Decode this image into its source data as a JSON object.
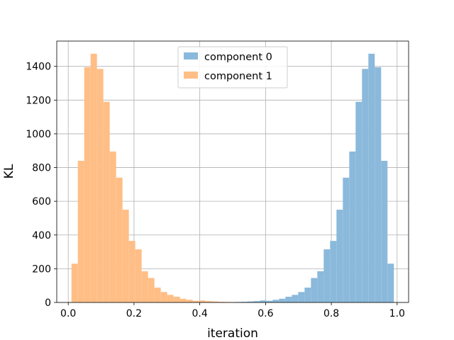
{
  "chart_data": {
    "type": "bar",
    "title": "",
    "xlabel": "iteration",
    "ylabel": "KL",
    "xlim": [
      -0.0349,
      1.0349
    ],
    "ylim": [
      0,
      1550
    ],
    "grid": true,
    "legend_position": "top-center",
    "bin_width": 0.01938,
    "x_ticks": [
      "0.0",
      "0.2",
      "0.4",
      "0.6",
      "0.8",
      "1.0"
    ],
    "y_ticks": [
      "0",
      "200",
      "400",
      "600",
      "800",
      "1000",
      "1200",
      "1400"
    ],
    "series": [
      {
        "name": "component 0",
        "color": "#8bb9db",
        "bins": [
          [
            0.4858,
            2
          ],
          [
            0.5052,
            3
          ],
          [
            0.5246,
            4
          ],
          [
            0.544,
            6
          ],
          [
            0.5634,
            8
          ],
          [
            0.5828,
            12
          ],
          [
            0.6022,
            10
          ],
          [
            0.6216,
            16
          ],
          [
            0.641,
            22
          ],
          [
            0.6604,
            34
          ],
          [
            0.6798,
            45
          ],
          [
            0.6992,
            62
          ],
          [
            0.7186,
            88
          ],
          [
            0.738,
            145
          ],
          [
            0.7574,
            185
          ],
          [
            0.7768,
            315
          ],
          [
            0.7962,
            365
          ],
          [
            0.8156,
            550
          ],
          [
            0.835,
            740
          ],
          [
            0.8544,
            895
          ],
          [
            0.8738,
            1190
          ],
          [
            0.8932,
            1385
          ],
          [
            0.9126,
            1475
          ],
          [
            0.932,
            1395
          ],
          [
            0.9514,
            840
          ],
          [
            0.9708,
            230
          ]
        ]
      },
      {
        "name": "component 1",
        "color": "#ffbe86",
        "bins": [
          [
            0.0098,
            230
          ],
          [
            0.0292,
            840
          ],
          [
            0.0486,
            1395
          ],
          [
            0.068,
            1475
          ],
          [
            0.0874,
            1385
          ],
          [
            0.1068,
            1190
          ],
          [
            0.1262,
            895
          ],
          [
            0.1456,
            740
          ],
          [
            0.165,
            550
          ],
          [
            0.1844,
            365
          ],
          [
            0.2038,
            315
          ],
          [
            0.2232,
            185
          ],
          [
            0.2426,
            145
          ],
          [
            0.262,
            88
          ],
          [
            0.2814,
            62
          ],
          [
            0.3008,
            45
          ],
          [
            0.3202,
            34
          ],
          [
            0.3396,
            22
          ],
          [
            0.359,
            16
          ],
          [
            0.3784,
            10
          ],
          [
            0.3978,
            12
          ],
          [
            0.4172,
            8
          ],
          [
            0.4366,
            6
          ],
          [
            0.456,
            4
          ],
          [
            0.4754,
            3
          ],
          [
            0.4948,
            2
          ]
        ]
      }
    ]
  }
}
